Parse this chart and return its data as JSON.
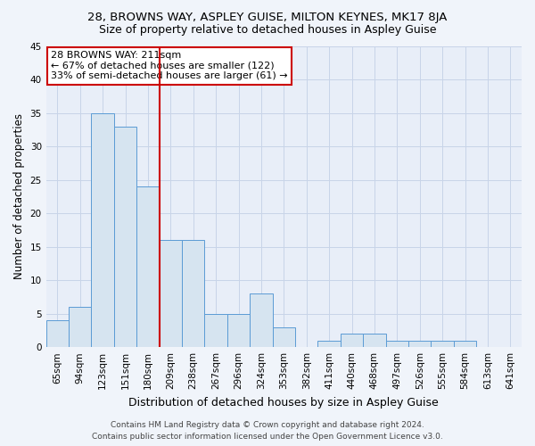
{
  "title": "28, BROWNS WAY, ASPLEY GUISE, MILTON KEYNES, MK17 8JA",
  "subtitle": "Size of property relative to detached houses in Aspley Guise",
  "xlabel": "Distribution of detached houses by size in Aspley Guise",
  "ylabel": "Number of detached properties",
  "categories": [
    "65sqm",
    "94sqm",
    "123sqm",
    "151sqm",
    "180sqm",
    "209sqm",
    "238sqm",
    "267sqm",
    "296sqm",
    "324sqm",
    "353sqm",
    "382sqm",
    "411sqm",
    "440sqm",
    "468sqm",
    "497sqm",
    "526sqm",
    "555sqm",
    "584sqm",
    "613sqm",
    "641sqm"
  ],
  "values": [
    4,
    6,
    35,
    33,
    24,
    16,
    16,
    5,
    5,
    8,
    3,
    0,
    1,
    2,
    2,
    1,
    1,
    1,
    1,
    0,
    0
  ],
  "bar_color": "#d6e4f0",
  "bar_edge_color": "#5b9bd5",
  "vline_index": 5,
  "vline_color": "#cc0000",
  "annotation_text": "28 BROWNS WAY: 211sqm\n← 67% of detached houses are smaller (122)\n33% of semi-detached houses are larger (61) →",
  "annotation_box_color": "#ffffff",
  "annotation_box_edge_color": "#cc0000",
  "ylim": [
    0,
    45
  ],
  "yticks": [
    0,
    5,
    10,
    15,
    20,
    25,
    30,
    35,
    40,
    45
  ],
  "footer_line1": "Contains HM Land Registry data © Crown copyright and database right 2024.",
  "footer_line2": "Contains public sector information licensed under the Open Government Licence v3.0.",
  "background_color": "#f0f4fa",
  "plot_bg_color": "#e8eef8",
  "grid_color": "#c8d4e8",
  "title_fontsize": 9.5,
  "subtitle_fontsize": 9,
  "xlabel_fontsize": 9,
  "ylabel_fontsize": 8.5,
  "tick_fontsize": 7.5,
  "annotation_fontsize": 8,
  "footer_fontsize": 6.5
}
